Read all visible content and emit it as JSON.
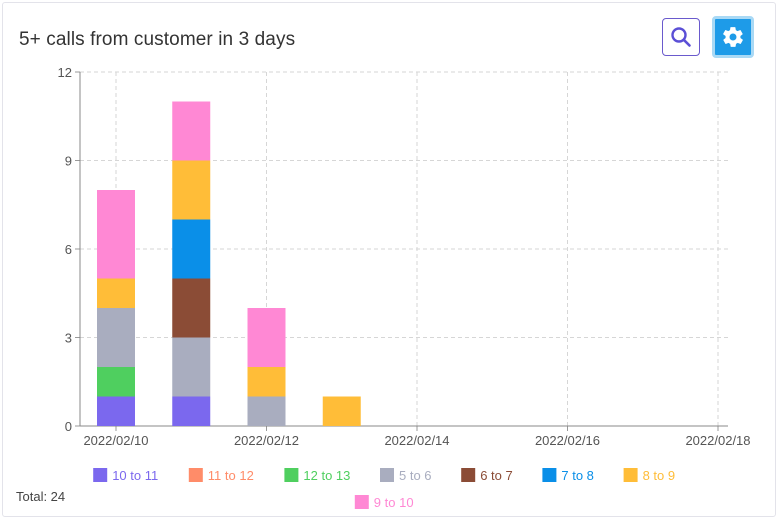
{
  "header": {
    "title": "5+ calls from customer in 3 days",
    "search_icon": "search-icon",
    "settings_icon": "gear-icon"
  },
  "footer": {
    "total": "Total: 24"
  },
  "chart_data": {
    "type": "bar",
    "stacked": true,
    "x": [
      "2022/02/10",
      "2022/02/11",
      "2022/02/12",
      "2022/02/13"
    ],
    "x_ticks": [
      "2022/02/10",
      "2022/02/12",
      "2022/02/14",
      "2022/02/16",
      "2022/02/18"
    ],
    "x_range": [
      "2022/02/10",
      "2022/02/18"
    ],
    "ylim": [
      0,
      12
    ],
    "y_ticks": [
      0,
      3,
      6,
      9,
      12
    ],
    "grid": true,
    "legend_position": "bottom",
    "series": [
      {
        "name": "10 to 11",
        "color": "#7b68ee",
        "values": [
          1,
          1,
          0,
          0
        ]
      },
      {
        "name": "11 to 12",
        "color": "#ff8c69",
        "values": [
          0,
          0,
          0,
          0
        ]
      },
      {
        "name": "12 to 13",
        "color": "#4fcf5f",
        "values": [
          1,
          0,
          0,
          0
        ]
      },
      {
        "name": "5 to 6",
        "color": "#a9adbf",
        "values": [
          2,
          2,
          1,
          0
        ]
      },
      {
        "name": "6 to 7",
        "color": "#8b4c36",
        "values": [
          0,
          2,
          0,
          0
        ]
      },
      {
        "name": "7 to 8",
        "color": "#0a8fe8",
        "values": [
          0,
          2,
          0,
          0
        ]
      },
      {
        "name": "8 to 9",
        "color": "#ffbd38",
        "values": [
          1,
          2,
          1,
          1
        ]
      },
      {
        "name": "9 to 10",
        "color": "#ff88d4",
        "values": [
          3,
          2,
          2,
          0
        ]
      }
    ]
  }
}
